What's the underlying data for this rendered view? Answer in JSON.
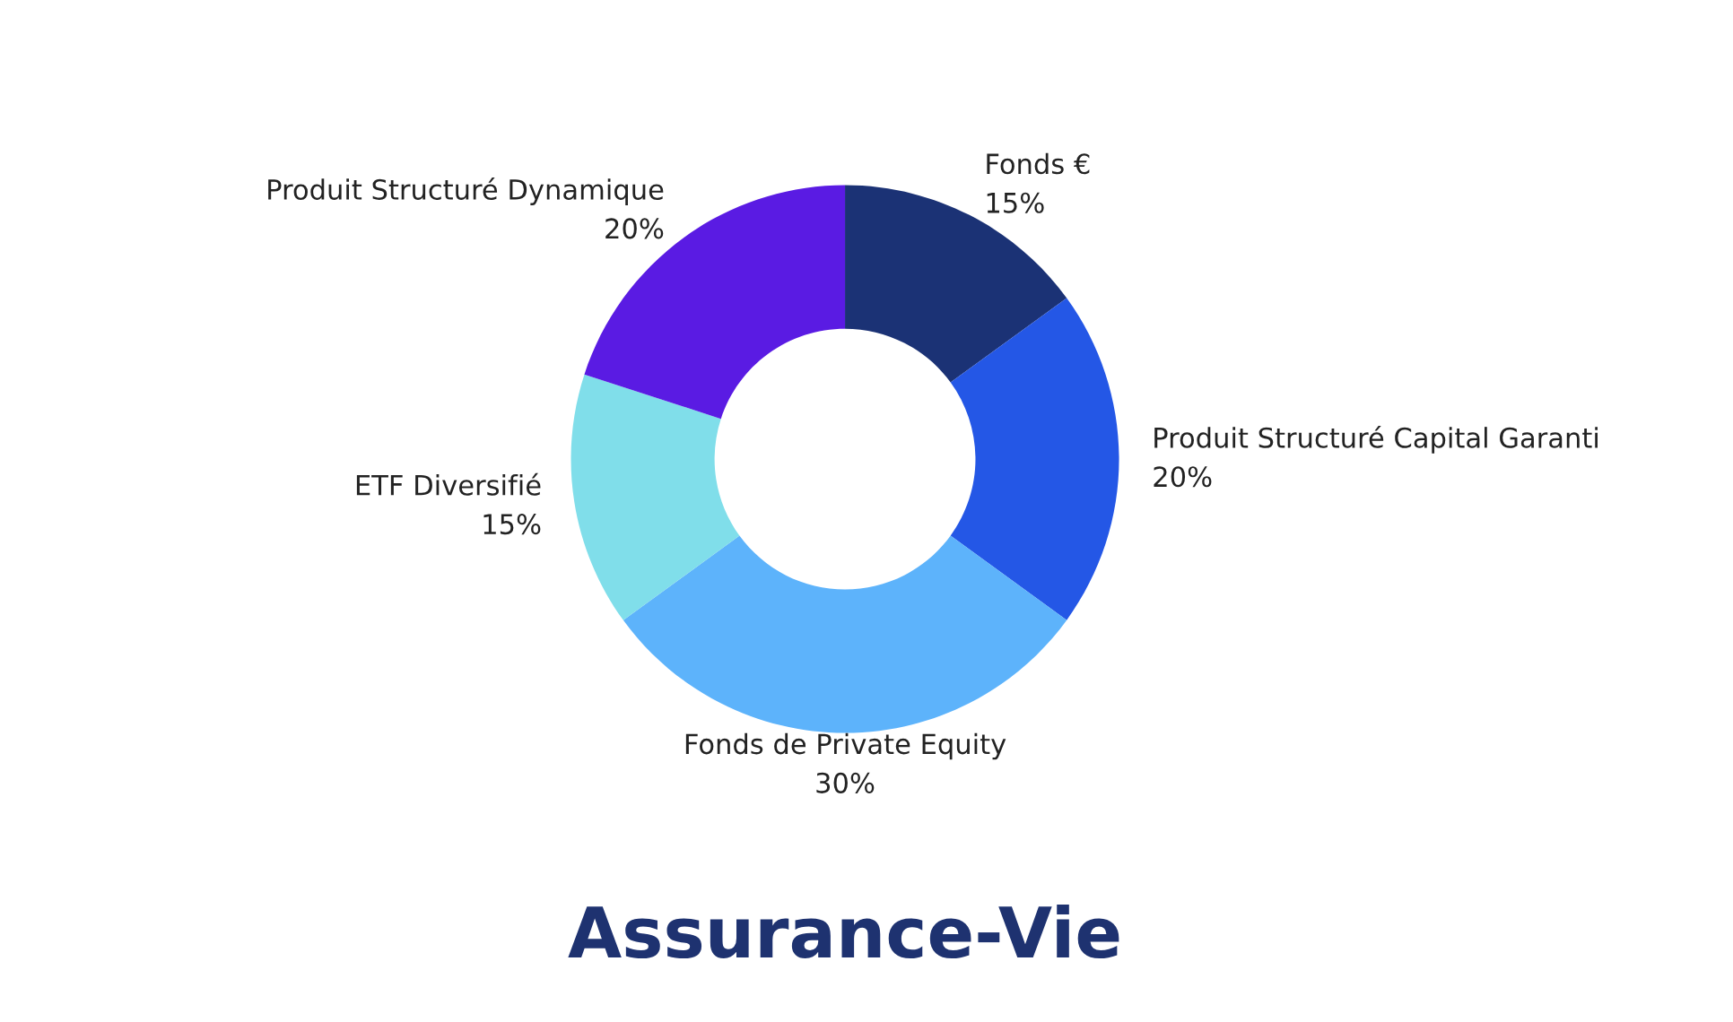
{
  "chart_data": {
    "type": "donut",
    "title": "Assurance-Vie",
    "categories": [
      "Fonds €",
      "Produit Structuré Capital Garanti",
      "Fonds de Private Equity",
      "ETF Diversifié",
      "Produit Structuré Dynamique"
    ],
    "values": [
      15,
      20,
      30,
      15,
      20
    ],
    "value_labels": [
      "15%",
      "20%",
      "30%",
      "15%",
      "20%"
    ],
    "colors": [
      "#1b3275",
      "#2457e6",
      "#5db3fb",
      "#80deea",
      "#5a1be3"
    ],
    "legend": false
  }
}
